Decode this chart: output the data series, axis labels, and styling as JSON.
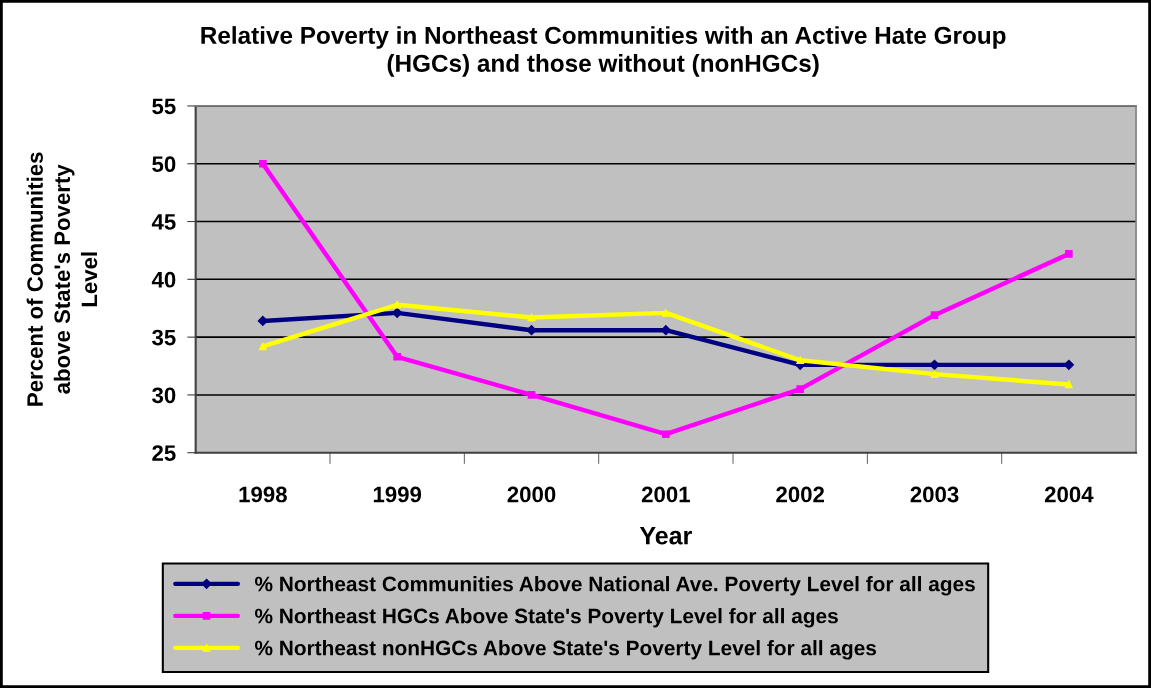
{
  "chart_data": {
    "type": "line",
    "title": "Relative Poverty in Northeast Communities with an Active Hate Group\n(HGCs) and those without (nonHGCs)",
    "xlabel": "Year",
    "ylabel": "Percent of Communities\nabove State's Poverty\nLevel",
    "categories": [
      "1998",
      "1999",
      "2000",
      "2001",
      "2002",
      "2003",
      "2004"
    ],
    "series": [
      {
        "name": "% Northeast Communities Above National Ave. Poverty Level for all ages",
        "color": "#000080",
        "marker": "diamond",
        "values": [
          36.4,
          37.1,
          35.6,
          35.6,
          32.6,
          32.6,
          32.6
        ]
      },
      {
        "name": "% Northeast HGCs Above State's Poverty Level for all ages",
        "color": "#ff00ff",
        "marker": "square",
        "values": [
          50.0,
          33.3,
          30.0,
          26.6,
          30.5,
          36.9,
          42.2
        ]
      },
      {
        "name": "% Northeast nonHGCs Above State's Poverty Level for all ages",
        "color": "#ffff00",
        "marker": "triangle",
        "values": [
          34.2,
          37.8,
          36.7,
          37.1,
          33.0,
          31.8,
          30.9
        ]
      }
    ],
    "ylim": [
      25,
      55
    ],
    "yticks": [
      25,
      30,
      35,
      40,
      45,
      50,
      55
    ],
    "grid": "y",
    "legend": "bottom",
    "line_style": "solid"
  }
}
